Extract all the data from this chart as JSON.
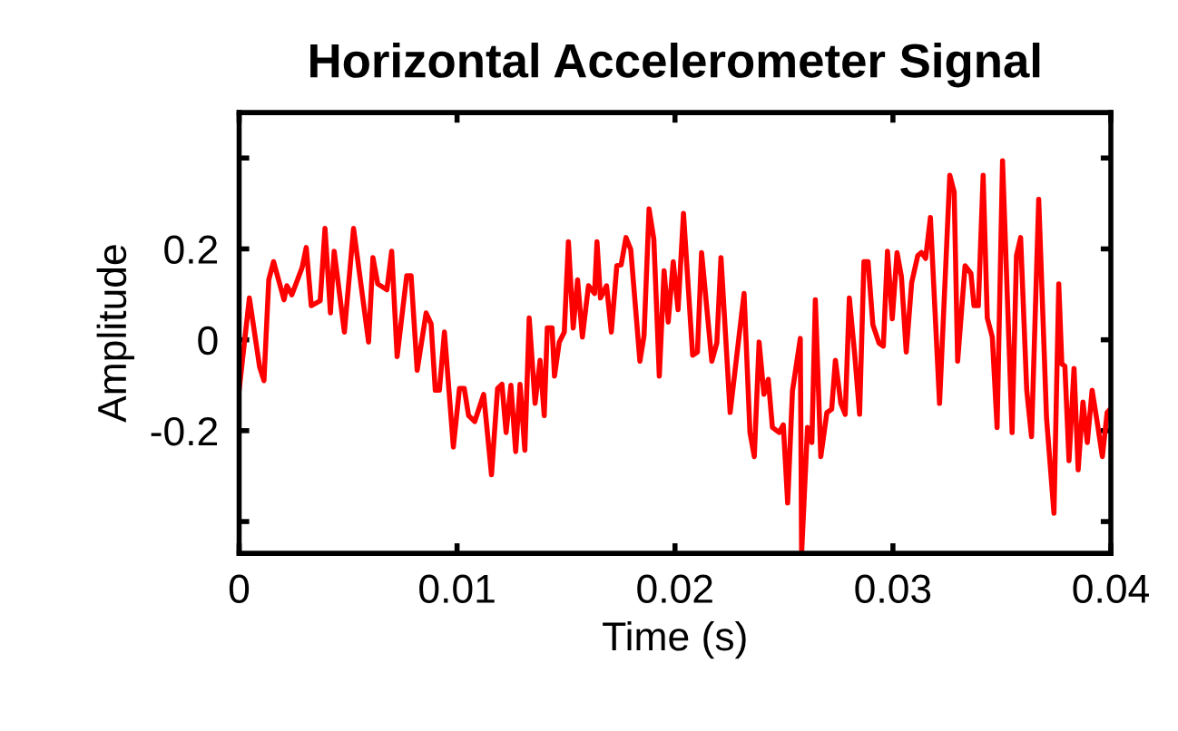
{
  "chart_data": {
    "type": "line",
    "title": "Horizontal Accelerometer Signal",
    "xlabel": "Time (s)",
    "ylabel": "Amplitude",
    "xlim": [
      0,
      0.04
    ],
    "xticks": [
      0,
      0.01,
      0.02,
      0.03,
      0.04
    ],
    "ylim": [
      -0.47,
      0.5
    ],
    "yticks": [
      {
        "value": -0.4,
        "label": null
      },
      {
        "value": -0.2,
        "label": "-0.2"
      },
      0,
      0.2,
      {
        "value": 0.4,
        "label": null
      }
    ],
    "line_style": "solid",
    "series": [
      {
        "color": "#ff0000",
        "x": [
          0.0,
          0.00047,
          0.00094,
          0.00114,
          0.00136,
          0.00158,
          0.00206,
          0.00219,
          0.00242,
          0.00289,
          0.00308,
          0.00331,
          0.00372,
          0.00394,
          0.00419,
          0.00436,
          0.00483,
          0.00525,
          0.00594,
          0.00614,
          0.00636,
          0.00678,
          0.007,
          0.00725,
          0.00769,
          0.00789,
          0.00817,
          0.00858,
          0.00881,
          0.009,
          0.00919,
          0.00942,
          0.00983,
          0.01011,
          0.01033,
          0.01053,
          0.01081,
          0.01122,
          0.01158,
          0.01186,
          0.01206,
          0.01225,
          0.01247,
          0.01269,
          0.01289,
          0.01311,
          0.01331,
          0.01358,
          0.01381,
          0.014,
          0.01414,
          0.01436,
          0.01447,
          0.01469,
          0.01492,
          0.01511,
          0.01533,
          0.01553,
          0.01575,
          0.01603,
          0.01631,
          0.01642,
          0.01658,
          0.01686,
          0.01708,
          0.01733,
          0.01753,
          0.01775,
          0.01797,
          0.01839,
          0.01858,
          0.01881,
          0.01903,
          0.01928,
          0.0195,
          0.01969,
          0.01992,
          0.02014,
          0.02039,
          0.02081,
          0.02103,
          0.02122,
          0.02169,
          0.02192,
          0.02211,
          0.02253,
          0.02317,
          0.02344,
          0.02364,
          0.02386,
          0.02408,
          0.02428,
          0.02447,
          0.02478,
          0.02497,
          0.02517,
          0.02539,
          0.02575,
          0.02581,
          0.02608,
          0.02628,
          0.02644,
          0.02669,
          0.02697,
          0.02719,
          0.02736,
          0.02761,
          0.02781,
          0.028,
          0.02825,
          0.02847,
          0.02867,
          0.02886,
          0.02908,
          0.02936,
          0.02956,
          0.02975,
          0.02997,
          0.03019,
          0.03039,
          0.03061,
          0.03086,
          0.03114,
          0.03131,
          0.0315,
          0.03172,
          0.03214,
          0.03261,
          0.03281,
          0.03297,
          0.03331,
          0.03358,
          0.03372,
          0.03392,
          0.03414,
          0.03433,
          0.03456,
          0.03478,
          0.03503,
          0.03547,
          0.03567,
          0.03586,
          0.03614,
          0.03636,
          0.03669,
          0.03705,
          0.03739,
          0.03761,
          0.03775,
          0.03789,
          0.03808,
          0.03831,
          0.0385,
          0.03872,
          0.03892,
          0.03914,
          0.03936,
          0.03961,
          0.03983,
          0.04
        ],
        "values": [
          -0.111,
          0.092,
          -0.06,
          -0.09,
          0.132,
          0.172,
          0.088,
          0.119,
          0.099,
          0.159,
          0.203,
          0.075,
          0.086,
          0.245,
          0.059,
          0.195,
          0.017,
          0.245,
          -0.005,
          0.181,
          0.123,
          0.11,
          0.195,
          -0.037,
          0.141,
          0.141,
          -0.067,
          0.059,
          0.035,
          -0.111,
          -0.111,
          0.017,
          -0.236,
          -0.107,
          -0.107,
          -0.167,
          -0.18,
          -0.12,
          -0.297,
          -0.107,
          -0.098,
          -0.204,
          -0.1,
          -0.246,
          -0.098,
          -0.243,
          0.048,
          -0.14,
          -0.045,
          -0.167,
          0.026,
          0.026,
          -0.08,
          -0.005,
          0.017,
          0.216,
          0.026,
          0.132,
          0.006,
          0.119,
          0.102,
          0.216,
          0.092,
          0.119,
          0.017,
          0.163,
          0.165,
          0.225,
          0.199,
          -0.047,
          0.009,
          0.288,
          0.221,
          -0.08,
          0.152,
          0.039,
          0.172,
          0.066,
          0.278,
          -0.034,
          -0.027,
          0.192,
          -0.047,
          -0.007,
          0.181,
          -0.16,
          0.102,
          -0.204,
          -0.257,
          -0.005,
          -0.12,
          -0.087,
          -0.193,
          -0.204,
          -0.187,
          -0.359,
          -0.113,
          0.003,
          -0.47,
          -0.193,
          -0.226,
          0.088,
          -0.257,
          -0.16,
          -0.153,
          -0.045,
          -0.14,
          -0.164,
          0.092,
          -0.034,
          -0.164,
          0.172,
          0.172,
          0.033,
          -0.007,
          -0.014,
          0.195,
          0.046,
          0.192,
          0.139,
          -0.027,
          0.126,
          0.185,
          0.192,
          0.179,
          0.269,
          -0.14,
          0.362,
          0.325,
          -0.047,
          0.163,
          0.146,
          0.075,
          0.075,
          0.362,
          0.048,
          0.006,
          -0.193,
          0.394,
          -0.204,
          0.185,
          0.225,
          -0.111,
          -0.213,
          0.309,
          -0.173,
          -0.382,
          0.123,
          -0.053,
          -0.058,
          -0.266,
          -0.063,
          -0.286,
          -0.137,
          -0.226,
          -0.111,
          -0.177,
          -0.257,
          -0.16,
          -0.151
        ]
      }
    ]
  }
}
